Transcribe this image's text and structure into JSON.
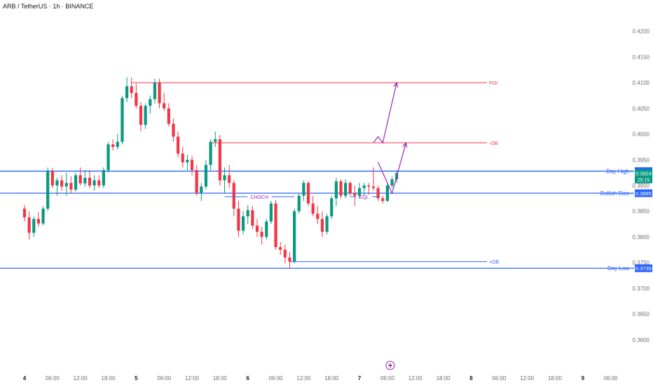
{
  "header": {
    "symbol_title": "ARB / TetherUS · 1h · BINANCE"
  },
  "colors": {
    "up": "#089981",
    "down": "#f23645",
    "level_blue": "#2962ff",
    "level_red": "#f23645",
    "annotation": "#9c27b0",
    "axis_text": "#6a6d78",
    "price_tag": "#089981",
    "price_tag_dark": "#0f7d68"
  },
  "chart_data": {
    "type": "candlestick",
    "title": "ARB / TetherUS · 1h · BINANCE",
    "ylim": [
      0.358,
      0.422
    ],
    "y_ticks": [
      "0.4200",
      "0.4150",
      "0.4100",
      "0.4050",
      "0.4000",
      "0.3950",
      "0.3900",
      "0.3850",
      "0.3800",
      "0.3750",
      "0.3700",
      "0.3650",
      "0.3600"
    ],
    "x_ticks": [
      {
        "label": "4",
        "bar": 0
      },
      {
        "label": "06:00",
        "bar": 6
      },
      {
        "label": "12:00",
        "bar": 12
      },
      {
        "label": "18:00",
        "bar": 18
      },
      {
        "label": "5",
        "bar": 24
      },
      {
        "label": "06:00",
        "bar": 30
      },
      {
        "label": "12:00",
        "bar": 36
      },
      {
        "label": "18:00",
        "bar": 42
      },
      {
        "label": "6",
        "bar": 48
      },
      {
        "label": "06:00",
        "bar": 54
      },
      {
        "label": "12:00",
        "bar": 60
      },
      {
        "label": "18:00",
        "bar": 66
      },
      {
        "label": "7",
        "bar": 72
      },
      {
        "label": "06:00",
        "bar": 78
      },
      {
        "label": "12:00",
        "bar": 84
      },
      {
        "label": "18:00",
        "bar": 90
      },
      {
        "label": "8",
        "bar": 96
      },
      {
        "label": "06:00",
        "bar": 102
      },
      {
        "label": "12:00",
        "bar": 108
      },
      {
        "label": "18:00",
        "bar": 114
      },
      {
        "label": "9",
        "bar": 120
      },
      {
        "label": "06:00",
        "bar": 126
      }
    ],
    "candles": [
      [
        0.3855,
        0.3862,
        0.383,
        0.3838
      ],
      [
        0.3838,
        0.385,
        0.3795,
        0.3808
      ],
      [
        0.3808,
        0.384,
        0.38,
        0.3835
      ],
      [
        0.3835,
        0.3848,
        0.382,
        0.3826
      ],
      [
        0.3826,
        0.386,
        0.3822,
        0.3855
      ],
      [
        0.3855,
        0.3935,
        0.385,
        0.3928
      ],
      [
        0.3928,
        0.3934,
        0.3895,
        0.39
      ],
      [
        0.39,
        0.3915,
        0.388,
        0.391
      ],
      [
        0.391,
        0.392,
        0.389,
        0.3898
      ],
      [
        0.3898,
        0.3925,
        0.388,
        0.3905
      ],
      [
        0.3905,
        0.3918,
        0.3885,
        0.3892
      ],
      [
        0.3892,
        0.3925,
        0.3888,
        0.392
      ],
      [
        0.392,
        0.3935,
        0.39,
        0.3904
      ],
      [
        0.3904,
        0.393,
        0.3898,
        0.3915
      ],
      [
        0.3915,
        0.393,
        0.3895,
        0.39
      ],
      [
        0.39,
        0.392,
        0.389,
        0.391
      ],
      [
        0.391,
        0.392,
        0.3895,
        0.39
      ],
      [
        0.39,
        0.3935,
        0.3895,
        0.393
      ],
      [
        0.393,
        0.3985,
        0.3925,
        0.398
      ],
      [
        0.398,
        0.399,
        0.3968,
        0.3975
      ],
      [
        0.3975,
        0.4,
        0.397,
        0.3985
      ],
      [
        0.3985,
        0.4075,
        0.398,
        0.407
      ],
      [
        0.407,
        0.411,
        0.4062,
        0.4093
      ],
      [
        0.4093,
        0.411,
        0.407,
        0.408
      ],
      [
        0.408,
        0.4098,
        0.405,
        0.4055
      ],
      [
        0.4055,
        0.4062,
        0.4005,
        0.4018
      ],
      [
        0.4018,
        0.406,
        0.401,
        0.4055
      ],
      [
        0.4055,
        0.4075,
        0.404,
        0.4068
      ],
      [
        0.4068,
        0.4108,
        0.406,
        0.41
      ],
      [
        0.41,
        0.4108,
        0.405,
        0.406
      ],
      [
        0.406,
        0.408,
        0.4045,
        0.405
      ],
      [
        0.405,
        0.406,
        0.4015,
        0.402
      ],
      [
        0.402,
        0.403,
        0.3985,
        0.3995
      ],
      [
        0.3995,
        0.4005,
        0.3955,
        0.3962
      ],
      [
        0.3962,
        0.3975,
        0.3935,
        0.3945
      ],
      [
        0.3945,
        0.396,
        0.393,
        0.395
      ],
      [
        0.395,
        0.3958,
        0.392,
        0.393
      ],
      [
        0.393,
        0.394,
        0.388,
        0.3885
      ],
      [
        0.3885,
        0.3905,
        0.387,
        0.3898
      ],
      [
        0.3898,
        0.395,
        0.3893,
        0.394
      ],
      [
        0.394,
        0.399,
        0.393,
        0.3985
      ],
      [
        0.3985,
        0.4005,
        0.3975,
        0.399
      ],
      [
        0.399,
        0.3998,
        0.39,
        0.391
      ],
      [
        0.391,
        0.3935,
        0.3885,
        0.392
      ],
      [
        0.392,
        0.394,
        0.3895,
        0.3905
      ],
      [
        0.3905,
        0.391,
        0.384,
        0.3855
      ],
      [
        0.3855,
        0.387,
        0.38,
        0.3812
      ],
      [
        0.3812,
        0.385,
        0.3805,
        0.384
      ],
      [
        0.384,
        0.3862,
        0.3825,
        0.3852
      ],
      [
        0.3852,
        0.386,
        0.3815,
        0.3822
      ],
      [
        0.3822,
        0.3835,
        0.38,
        0.381
      ],
      [
        0.381,
        0.382,
        0.3785,
        0.38
      ],
      [
        0.38,
        0.3835,
        0.3795,
        0.383
      ],
      [
        0.383,
        0.387,
        0.3825,
        0.3865
      ],
      [
        0.3865,
        0.3872,
        0.3775,
        0.378
      ],
      [
        0.378,
        0.379,
        0.3765,
        0.3775
      ],
      [
        0.3775,
        0.3785,
        0.3748,
        0.376
      ],
      [
        0.376,
        0.377,
        0.374,
        0.3752
      ],
      [
        0.3752,
        0.3855,
        0.3749,
        0.385
      ],
      [
        0.385,
        0.3885,
        0.3845,
        0.388
      ],
      [
        0.388,
        0.391,
        0.387,
        0.3905
      ],
      [
        0.3905,
        0.3908,
        0.386,
        0.3865
      ],
      [
        0.3865,
        0.388,
        0.384,
        0.3845
      ],
      [
        0.3845,
        0.386,
        0.3825,
        0.3835
      ],
      [
        0.3835,
        0.385,
        0.38,
        0.381
      ],
      [
        0.381,
        0.3845,
        0.3805,
        0.384
      ],
      [
        0.384,
        0.388,
        0.3835,
        0.3875
      ],
      [
        0.3875,
        0.3915,
        0.386,
        0.3908
      ],
      [
        0.3908,
        0.3912,
        0.3875,
        0.388
      ],
      [
        0.388,
        0.3912,
        0.3875,
        0.3905
      ],
      [
        0.3905,
        0.3908,
        0.388,
        0.3885
      ],
      [
        0.3885,
        0.39,
        0.386,
        0.388
      ],
      [
        0.388,
        0.3905,
        0.3875,
        0.3895
      ],
      [
        0.3895,
        0.3905,
        0.388,
        0.39
      ],
      [
        0.39,
        0.3905,
        0.3882,
        0.3898
      ],
      [
        0.3898,
        0.3935,
        0.389,
        0.3895
      ],
      [
        0.3895,
        0.39,
        0.387,
        0.3875
      ],
      [
        0.3875,
        0.388,
        0.3865,
        0.387
      ],
      [
        0.387,
        0.3905,
        0.3868,
        0.39
      ],
      [
        0.39,
        0.3918,
        0.3895,
        0.3912
      ],
      [
        0.3912,
        0.393,
        0.3905,
        0.3924
      ]
    ],
    "levels": [
      {
        "name": "POI",
        "price": 0.41,
        "start_bar": 23,
        "color": "red"
      },
      {
        "name": "-OB",
        "price": 0.3983,
        "start_bar": 40,
        "color": "red"
      },
      {
        "name": "Day High",
        "price": 0.3928,
        "start_bar": -1,
        "color": "blue",
        "tag": "0.3928"
      },
      {
        "name": "Bullish Bias",
        "price": 0.3885,
        "start_bar": -1,
        "color": "blue",
        "tag": "0.3885"
      },
      {
        "name": "+OB",
        "price": 0.3752,
        "start_bar": 57,
        "color": "blue"
      },
      {
        "name": "Day Low",
        "price": 0.3739,
        "start_bar": -1,
        "color": "blue",
        "tag": "0.3739"
      }
    ],
    "annotations": [
      {
        "text": "CHOCH",
        "price": 0.3866,
        "from_bar": 43,
        "to_bar": 58
      },
      {
        "text": "EQL",
        "price": 0.3866,
        "from_bar": 70,
        "to_bar": 76
      }
    ],
    "projections": [
      [
        [
          76,
          0.3945
        ],
        [
          79,
          0.3885
        ],
        [
          82,
          0.3983
        ]
      ],
      [
        [
          75,
          0.3983
        ],
        [
          76,
          0.3995
        ],
        [
          77,
          0.3983
        ],
        [
          80,
          0.41
        ]
      ]
    ],
    "last_price_tag": {
      "price": "0.3924",
      "countdown": "25:15"
    }
  }
}
